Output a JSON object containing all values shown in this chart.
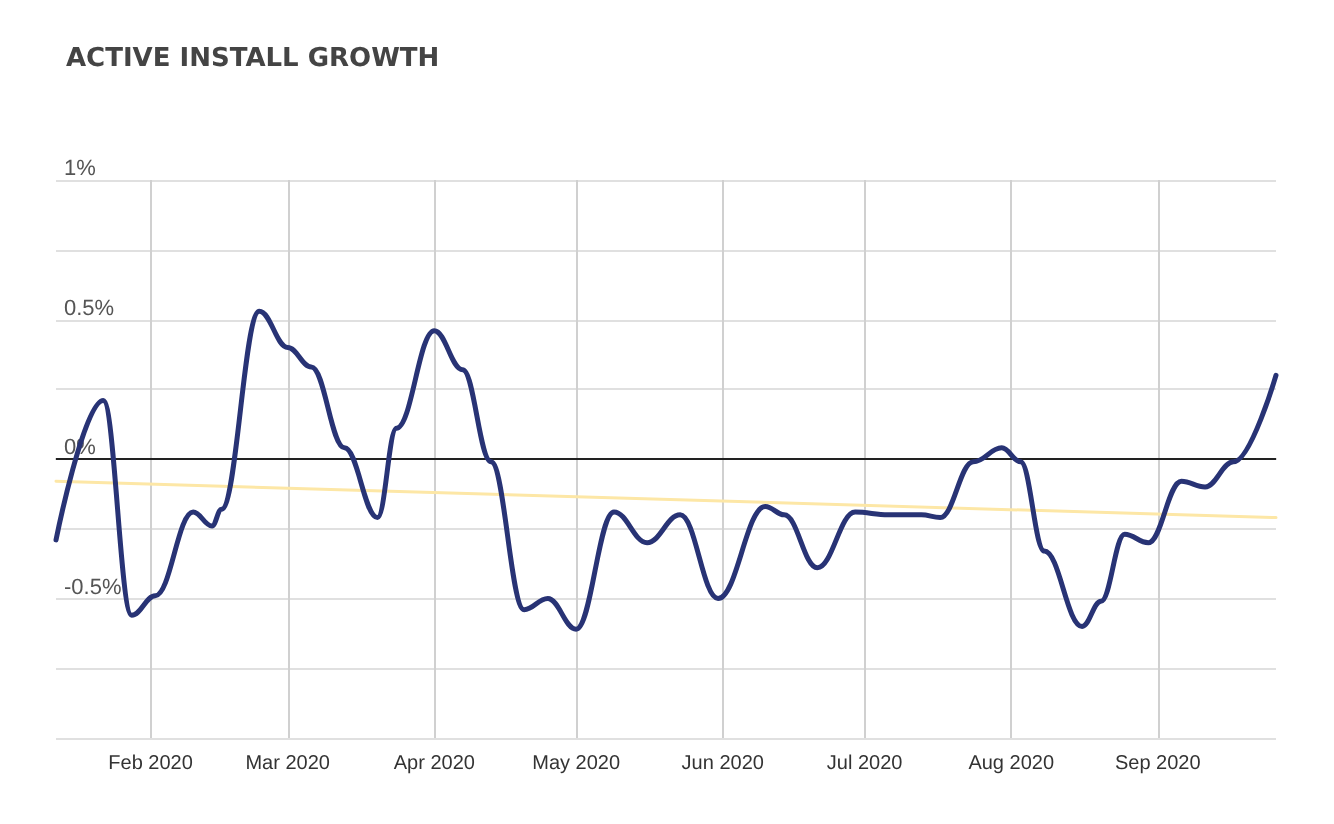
{
  "chart_data": {
    "type": "line",
    "title": "ACTIVE INSTALL GROWTH",
    "series": [
      {
        "color": "#283375",
        "x": [
          "2020-01-12",
          "2020-01-22",
          "2020-01-28",
          "2020-02-02",
          "2020-02-10",
          "2020-02-14",
          "2020-02-16",
          "2020-02-24",
          "2020-03-01",
          "2020-03-06",
          "2020-03-13",
          "2020-03-20",
          "2020-03-24",
          "2020-04-01",
          "2020-04-07",
          "2020-04-13",
          "2020-04-20",
          "2020-04-25",
          "2020-05-01",
          "2020-05-09",
          "2020-05-16",
          "2020-05-23",
          "2020-05-31",
          "2020-06-10",
          "2020-06-14",
          "2020-06-21",
          "2020-06-29",
          "2020-07-06",
          "2020-07-13",
          "2020-07-17",
          "2020-07-24",
          "2020-07-30",
          "2020-08-03",
          "2020-08-08",
          "2020-08-16",
          "2020-08-20",
          "2020-08-25",
          "2020-08-30",
          "2020-09-06",
          "2020-09-11",
          "2020-09-17",
          "2020-09-26"
        ],
        "values": [
          -0.29,
          0.21,
          -0.56,
          -0.49,
          -0.19,
          -0.24,
          -0.18,
          0.53,
          0.4,
          0.33,
          0.04,
          -0.21,
          0.11,
          0.46,
          0.32,
          -0.01,
          -0.54,
          -0.5,
          -0.61,
          -0.19,
          -0.3,
          -0.2,
          -0.5,
          -0.17,
          -0.2,
          -0.39,
          -0.19,
          -0.2,
          -0.2,
          -0.21,
          -0.01,
          0.04,
          -0.01,
          -0.33,
          -0.6,
          -0.51,
          -0.27,
          -0.3,
          -0.08,
          -0.1,
          -0.01,
          0.3
        ]
      },
      {
        "color": "#fde7a6",
        "x": [
          "2020-01-12",
          "2020-09-26"
        ],
        "values": [
          -0.08,
          -0.21
        ]
      }
    ],
    "xlim": [
      "2020-01-12",
      "2020-09-26"
    ],
    "xticks": [
      {
        "value": "2020-02-01",
        "label": "Feb 2020"
      },
      {
        "value": "2020-03-01",
        "label": "Mar 2020"
      },
      {
        "value": "2020-04-01",
        "label": "Apr 2020"
      },
      {
        "value": "2020-05-01",
        "label": "May 2020"
      },
      {
        "value": "2020-06-01",
        "label": "Jun 2020"
      },
      {
        "value": "2020-07-01",
        "label": "Jul 2020"
      },
      {
        "value": "2020-08-01",
        "label": "Aug 2020"
      },
      {
        "value": "2020-09-01",
        "label": "Sep 2020"
      }
    ],
    "ylim": [
      -1,
      1
    ],
    "yticks": [
      {
        "value": -1,
        "label": null
      },
      {
        "value": -0.75,
        "label": null
      },
      {
        "value": -0.5,
        "label": "-0.5%"
      },
      {
        "value": -0.25,
        "label": null
      },
      {
        "value": 0,
        "label": "0%"
      },
      {
        "value": 0.25,
        "label": null
      },
      {
        "value": 0.5,
        "label": "0.5%"
      },
      {
        "value": 0.75,
        "label": null
      },
      {
        "value": 1,
        "label": "1%"
      }
    ],
    "ref_lines": [
      {
        "axis": "y",
        "value": 0,
        "color": "#222222"
      }
    ],
    "grid": true,
    "marker": "none",
    "line_style": "solid"
  }
}
